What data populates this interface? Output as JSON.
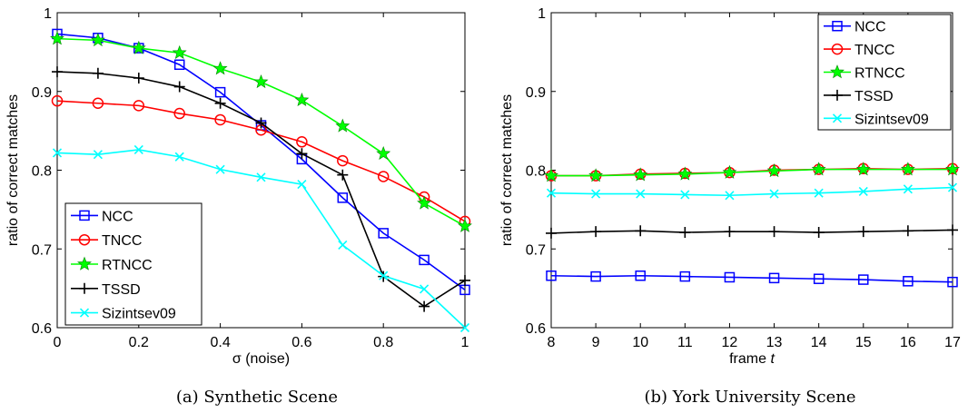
{
  "chart_data": [
    {
      "type": "line",
      "caption": "(a) Synthetic Scene",
      "title": "",
      "xlabel": "σ (noise)",
      "ylabel": "ratio of correct matches",
      "xlim": [
        0,
        1
      ],
      "ylim": [
        0.6,
        1
      ],
      "xticks": [
        0,
        0.2,
        0.4,
        0.6,
        0.8,
        1
      ],
      "xtick_labels": [
        "0",
        "0.2",
        "0.4",
        "0.6",
        "0.8",
        "1"
      ],
      "yticks": [
        0.6,
        0.7,
        0.8,
        0.9,
        1
      ],
      "ytick_labels": [
        "0.6",
        "0.7",
        "0.8",
        "0.9",
        "1"
      ],
      "grid": false,
      "legend_position": "bottom-left",
      "x": [
        0,
        0.1,
        0.2,
        0.3,
        0.4,
        0.5,
        0.6,
        0.7,
        0.8,
        0.9,
        1
      ],
      "series": [
        {
          "name": "NCC",
          "color": "#0000ff",
          "marker": "square",
          "values": [
            0.973,
            0.968,
            0.955,
            0.934,
            0.899,
            0.857,
            0.814,
            0.765,
            0.72,
            0.686,
            0.648
          ]
        },
        {
          "name": "TNCC",
          "color": "#ff0000",
          "marker": "circle",
          "values": [
            0.888,
            0.885,
            0.882,
            0.872,
            0.864,
            0.851,
            0.836,
            0.812,
            0.792,
            0.766,
            0.735
          ]
        },
        {
          "name": "RTNCC",
          "color": "#00ff00",
          "marker": "star",
          "values": [
            0.967,
            0.965,
            0.955,
            0.949,
            0.929,
            0.912,
            0.889,
            0.856,
            0.821,
            0.758,
            0.729
          ]
        },
        {
          "name": "TSSD",
          "color": "#000000",
          "marker": "plus",
          "values": [
            0.925,
            0.923,
            0.917,
            0.906,
            0.885,
            0.86,
            0.821,
            0.794,
            0.665,
            0.627,
            0.66
          ]
        },
        {
          "name": "Sizintsev09",
          "color": "#00ffff",
          "marker": "x",
          "values": [
            0.822,
            0.82,
            0.826,
            0.817,
            0.801,
            0.791,
            0.782,
            0.705,
            0.666,
            0.649,
            0.6
          ]
        }
      ]
    },
    {
      "type": "line",
      "caption": "(b) York University Scene",
      "title": "",
      "xlabel": "frame",
      "xlabel_var": "t",
      "ylabel": "ratio of correct matches",
      "xlim": [
        8,
        17
      ],
      "ylim": [
        0.6,
        1
      ],
      "xticks": [
        8,
        9,
        10,
        11,
        12,
        13,
        14,
        15,
        16,
        17
      ],
      "xtick_labels": [
        "8",
        "9",
        "10",
        "11",
        "12",
        "13",
        "14",
        "15",
        "16",
        "17"
      ],
      "yticks": [
        0.6,
        0.7,
        0.8,
        0.9,
        1
      ],
      "ytick_labels": [
        "0.6",
        "0.7",
        "0.8",
        "0.9",
        "1"
      ],
      "grid": false,
      "legend_position": "top-right",
      "x": [
        8,
        9,
        10,
        11,
        12,
        13,
        14,
        15,
        16,
        17
      ],
      "series": [
        {
          "name": "NCC",
          "color": "#0000ff",
          "marker": "square",
          "values": [
            0.666,
            0.665,
            0.666,
            0.665,
            0.664,
            0.663,
            0.662,
            0.661,
            0.659,
            0.658
          ]
        },
        {
          "name": "TNCC",
          "color": "#ff0000",
          "marker": "circle",
          "values": [
            0.793,
            0.793,
            0.795,
            0.796,
            0.797,
            0.8,
            0.801,
            0.802,
            0.801,
            0.802
          ]
        },
        {
          "name": "RTNCC",
          "color": "#00ff00",
          "marker": "star",
          "values": [
            0.793,
            0.793,
            0.794,
            0.795,
            0.797,
            0.799,
            0.801,
            0.801,
            0.801,
            0.801
          ]
        },
        {
          "name": "TSSD",
          "color": "#000000",
          "marker": "plus",
          "values": [
            0.72,
            0.722,
            0.723,
            0.721,
            0.722,
            0.722,
            0.721,
            0.722,
            0.723,
            0.724
          ]
        },
        {
          "name": "Sizintsev09",
          "color": "#00ffff",
          "marker": "x",
          "values": [
            0.771,
            0.77,
            0.77,
            0.769,
            0.768,
            0.77,
            0.771,
            0.773,
            0.776,
            0.778
          ]
        }
      ]
    }
  ]
}
